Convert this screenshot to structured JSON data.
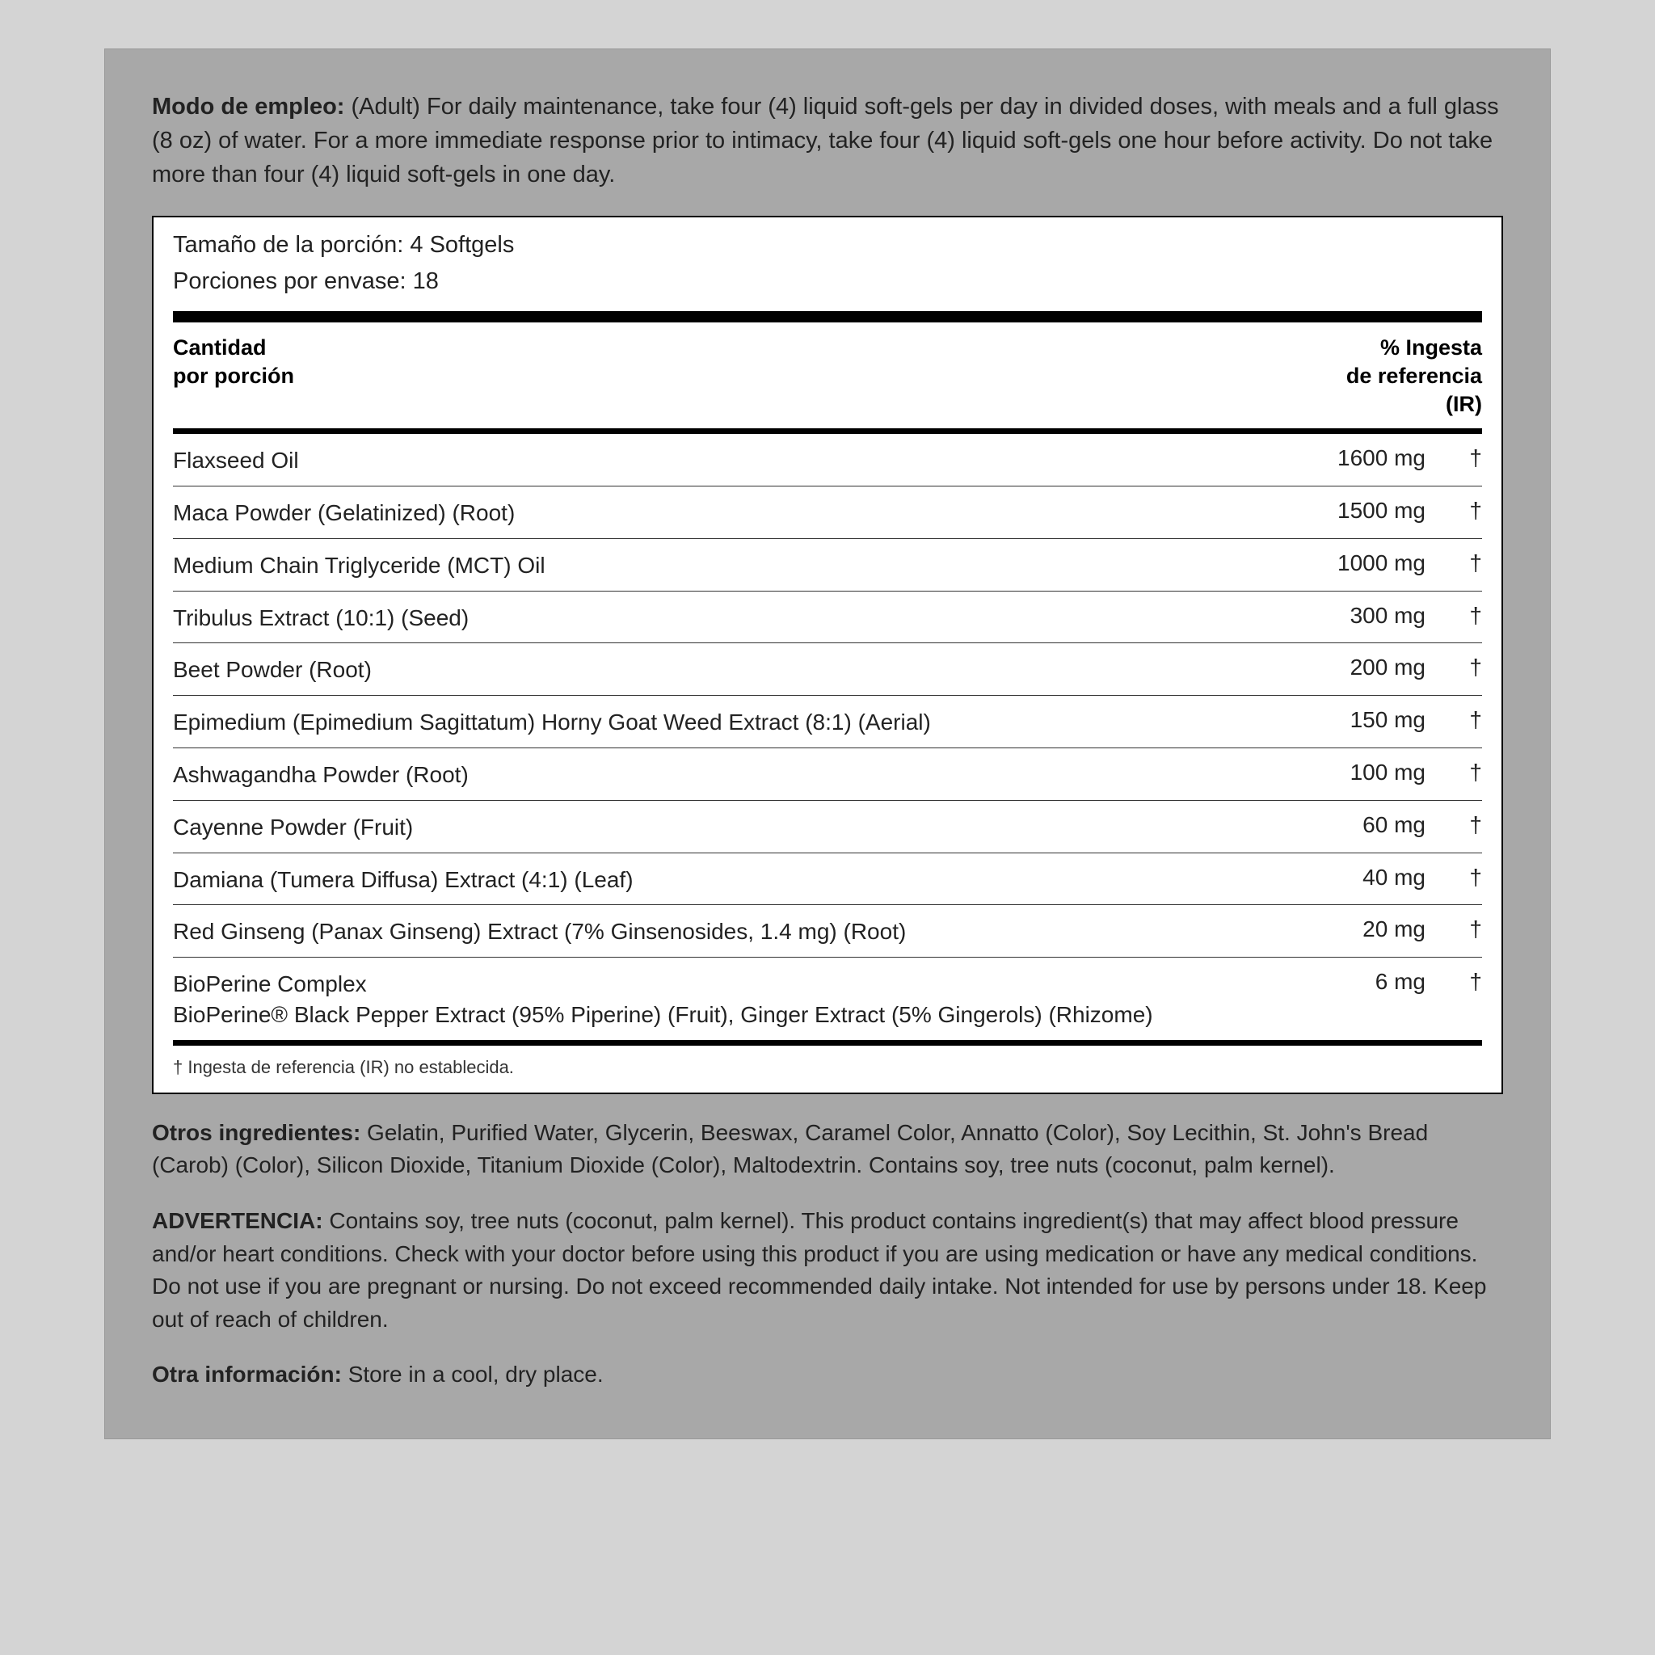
{
  "usage": {
    "label": "Modo de empleo:",
    "text": " (Adult) For daily maintenance, take four (4) liquid soft-gels per day in divided doses, with meals and a full glass (8 oz) of water. For a more immediate response prior to intimacy, take four (4) liquid soft-gels one hour before activity. Do not take more than four (4) liquid soft-gels in one day."
  },
  "serving_size": "Tamaño de la porción: 4 Softgels",
  "servings_per": "Porciones por envase: 18",
  "header": {
    "left1": "Cantidad",
    "left2": "por porción",
    "right1": "% Ingesta",
    "right2": "de referencia",
    "right3": "(IR)"
  },
  "rows": [
    {
      "name": "Flaxseed Oil",
      "amt": "1600 mg",
      "dv": "†"
    },
    {
      "name": "Maca Powder (Gelatinized) (Root)",
      "amt": "1500 mg",
      "dv": "†"
    },
    {
      "name": "Medium Chain Triglyceride (MCT) Oil",
      "amt": "1000 mg",
      "dv": "†"
    },
    {
      "name": "Tribulus Extract (10:1) (Seed)",
      "amt": "300 mg",
      "dv": "†"
    },
    {
      "name": "Beet Powder (Root)",
      "amt": "200 mg",
      "dv": "†"
    },
    {
      "name": "Epimedium (Epimedium Sagittatum) Horny Goat Weed Extract (8:1) (Aerial)",
      "amt": "150 mg",
      "dv": "†"
    },
    {
      "name": "Ashwagandha Powder (Root)",
      "amt": "100 mg",
      "dv": "†"
    },
    {
      "name": "Cayenne Powder (Fruit)",
      "amt": "60 mg",
      "dv": "†"
    },
    {
      "name": "Damiana (Tumera Diffusa) Extract (4:1) (Leaf)",
      "amt": "40 mg",
      "dv": "†"
    },
    {
      "name": "Red Ginseng (Panax Ginseng) Extract (7% Ginsenosides, 1.4 mg) (Root)",
      "amt": "20 mg",
      "dv": "†"
    },
    {
      "name": "BioPerine Complex",
      "sub": "BioPerine® Black Pepper Extract (95% Piperine) (Fruit), Ginger Extract (5% Gingerols) (Rhizome)",
      "amt": "6 mg",
      "dv": "†"
    }
  ],
  "footnote": "† Ingesta de referencia (IR) no establecida.",
  "other_ingredients": {
    "label": "Otros ingredientes:",
    "text": " Gelatin, Purified Water, Glycerin, Beeswax, Caramel Color, Annatto (Color), Soy Lecithin, St. John's Bread (Carob) (Color), Silicon Dioxide, Titanium Dioxide (Color), Maltodextrin. Contains soy, tree nuts (coconut, palm kernel)."
  },
  "warning": {
    "label": "ADVERTENCIA:",
    "text": " Contains soy, tree nuts (coconut, palm kernel). This product contains ingredient(s) that may affect blood pressure and/or heart conditions. Check with your doctor before using this product if you are using medication or have any medical conditions. Do not use if you are pregnant or nursing. Do not exceed recommended daily intake. Not intended for use by persons under 18. Keep out of reach of children."
  },
  "other_info": {
    "label": "Otra información:",
    "text": " Store in a cool, dry place."
  }
}
